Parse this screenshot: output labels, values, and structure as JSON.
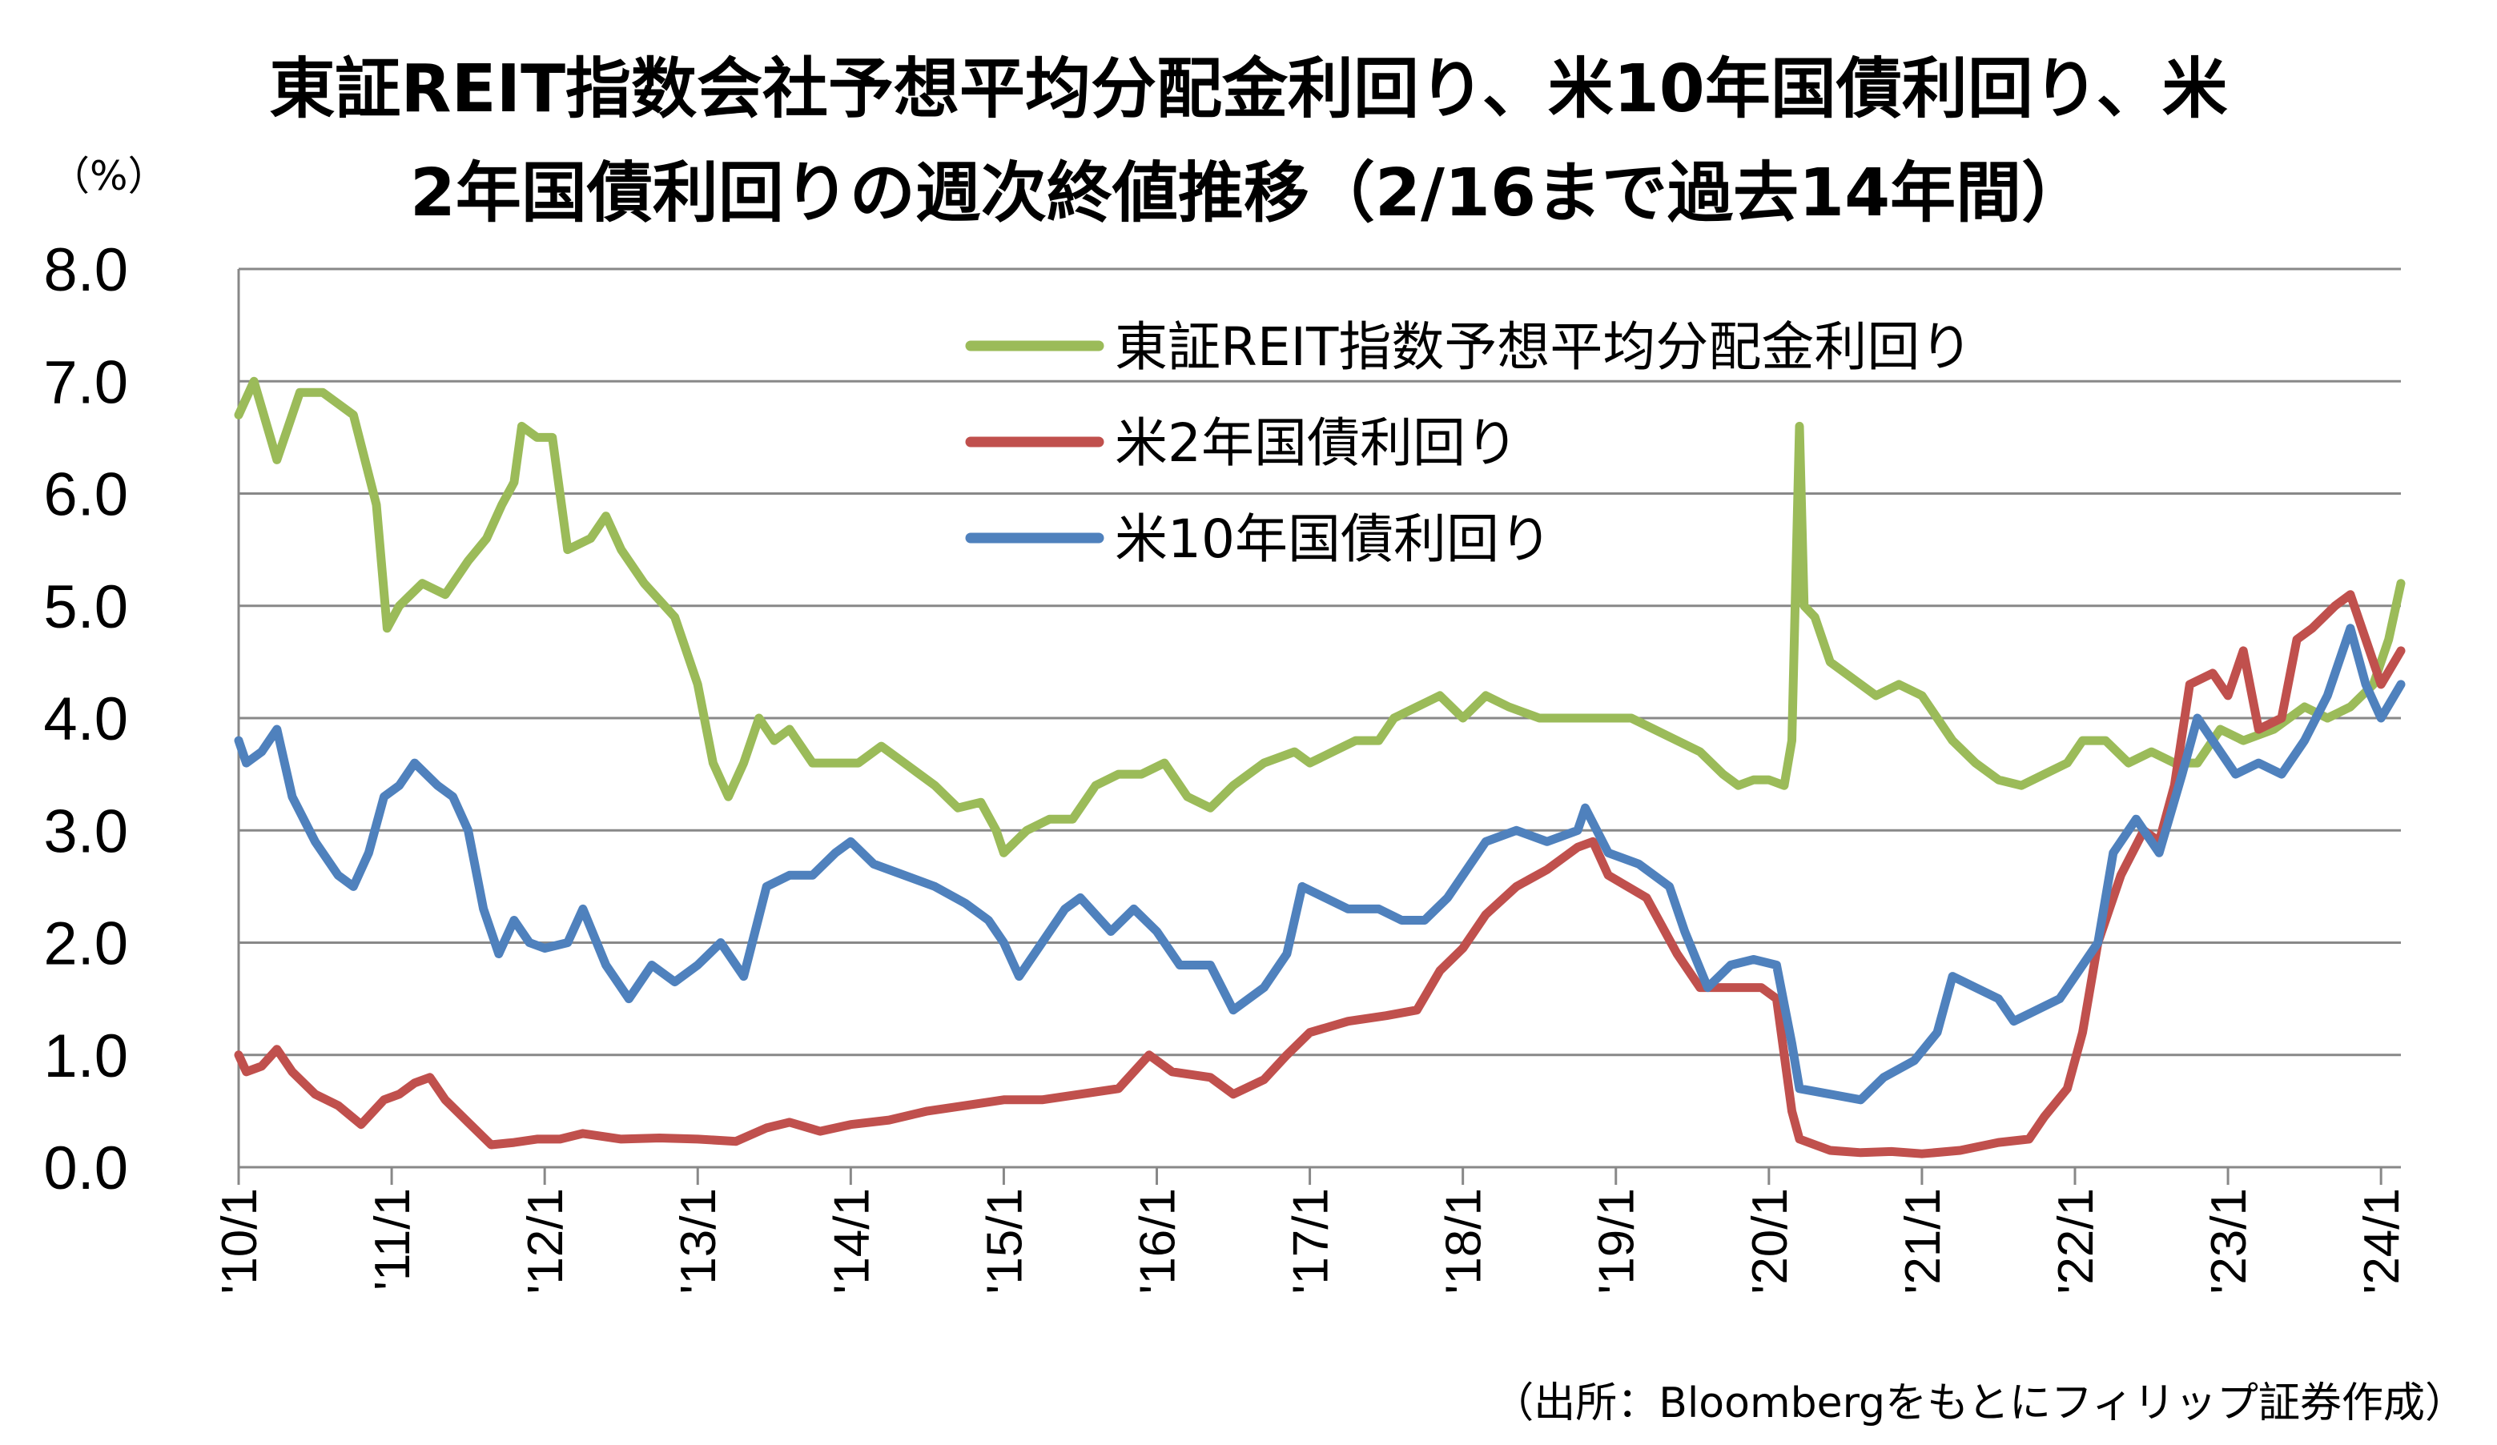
{
  "chart_data": {
    "type": "line",
    "title_line1": "東証REIT指数会社予想平均分配金利回り、米10年国債利回り、米",
    "title_line2": "2年国債利回りの週次終値推移（2/16まで過去14年間）",
    "ylabel": "（%）",
    "source": "（出所：Bloombergをもとにフィリップ証券作成）",
    "ylim": [
      0,
      8
    ],
    "yticks": [
      "0.0",
      "1.0",
      "2.0",
      "3.0",
      "4.0",
      "5.0",
      "6.0",
      "7.0",
      "8.0"
    ],
    "xticks": [
      "'10/1",
      "'11/1",
      "'12/1",
      "'13/1",
      "'14/1",
      "'15/1",
      "'16/1",
      "'17/1",
      "'18/1",
      "'19/1",
      "'20/1",
      "'21/1",
      "'22/1",
      "'23/1",
      "'24/1"
    ],
    "grid": true,
    "legend_position": "top-center",
    "series": [
      {
        "name": "東証REIT指数予想平均分配金利回り",
        "color": "#9BBB59",
        "points": [
          [
            2010.0,
            6.7
          ],
          [
            2010.1,
            7.0
          ],
          [
            2010.25,
            6.3
          ],
          [
            2010.4,
            6.9
          ],
          [
            2010.55,
            6.9
          ],
          [
            2010.75,
            6.7
          ],
          [
            2010.9,
            5.9
          ],
          [
            2010.97,
            4.8
          ],
          [
            2011.05,
            5.0
          ],
          [
            2011.2,
            5.2
          ],
          [
            2011.35,
            5.1
          ],
          [
            2011.5,
            5.4
          ],
          [
            2011.62,
            5.6
          ],
          [
            2011.72,
            5.9
          ],
          [
            2011.8,
            6.1
          ],
          [
            2011.85,
            6.6
          ],
          [
            2011.95,
            6.5
          ],
          [
            2012.05,
            6.5
          ],
          [
            2012.15,
            5.5
          ],
          [
            2012.3,
            5.6
          ],
          [
            2012.4,
            5.8
          ],
          [
            2012.5,
            5.5
          ],
          [
            2012.65,
            5.2
          ],
          [
            2012.85,
            4.9
          ],
          [
            2013.0,
            4.3
          ],
          [
            2013.1,
            3.6
          ],
          [
            2013.2,
            3.3
          ],
          [
            2013.3,
            3.6
          ],
          [
            2013.4,
            4.0
          ],
          [
            2013.5,
            3.8
          ],
          [
            2013.6,
            3.9
          ],
          [
            2013.75,
            3.6
          ],
          [
            2013.9,
            3.6
          ],
          [
            2014.05,
            3.6
          ],
          [
            2014.2,
            3.75
          ],
          [
            2014.35,
            3.6
          ],
          [
            2014.55,
            3.4
          ],
          [
            2014.7,
            3.2
          ],
          [
            2014.85,
            3.25
          ],
          [
            2014.95,
            3.0
          ],
          [
            2015.0,
            2.8
          ],
          [
            2015.15,
            3.0
          ],
          [
            2015.3,
            3.1
          ],
          [
            2015.45,
            3.1
          ],
          [
            2015.6,
            3.4
          ],
          [
            2015.75,
            3.5
          ],
          [
            2015.9,
            3.5
          ],
          [
            2016.05,
            3.6
          ],
          [
            2016.2,
            3.3
          ],
          [
            2016.35,
            3.2
          ],
          [
            2016.5,
            3.4
          ],
          [
            2016.7,
            3.6
          ],
          [
            2016.9,
            3.7
          ],
          [
            2017.0,
            3.6
          ],
          [
            2017.15,
            3.7
          ],
          [
            2017.3,
            3.8
          ],
          [
            2017.45,
            3.8
          ],
          [
            2017.55,
            4.0
          ],
          [
            2017.7,
            4.1
          ],
          [
            2017.85,
            4.2
          ],
          [
            2018.0,
            4.0
          ],
          [
            2018.15,
            4.2
          ],
          [
            2018.3,
            4.1
          ],
          [
            2018.5,
            4.0
          ],
          [
            2018.7,
            4.0
          ],
          [
            2018.9,
            4.0
          ],
          [
            2019.1,
            4.0
          ],
          [
            2019.25,
            3.9
          ],
          [
            2019.4,
            3.8
          ],
          [
            2019.55,
            3.7
          ],
          [
            2019.7,
            3.5
          ],
          [
            2019.8,
            3.4
          ],
          [
            2019.9,
            3.45
          ],
          [
            2020.0,
            3.45
          ],
          [
            2020.1,
            3.4
          ],
          [
            2020.15,
            3.8
          ],
          [
            2020.2,
            6.6
          ],
          [
            2020.23,
            5.0
          ],
          [
            2020.3,
            4.9
          ],
          [
            2020.4,
            4.5
          ],
          [
            2020.5,
            4.4
          ],
          [
            2020.6,
            4.3
          ],
          [
            2020.7,
            4.2
          ],
          [
            2020.85,
            4.3
          ],
          [
            2021.0,
            4.2
          ],
          [
            2021.1,
            4.0
          ],
          [
            2021.2,
            3.8
          ],
          [
            2021.35,
            3.6
          ],
          [
            2021.5,
            3.45
          ],
          [
            2021.65,
            3.4
          ],
          [
            2021.8,
            3.5
          ],
          [
            2021.95,
            3.6
          ],
          [
            2022.05,
            3.8
          ],
          [
            2022.2,
            3.8
          ],
          [
            2022.35,
            3.6
          ],
          [
            2022.5,
            3.7
          ],
          [
            2022.65,
            3.6
          ],
          [
            2022.8,
            3.6
          ],
          [
            2022.95,
            3.9
          ],
          [
            2023.1,
            3.8
          ],
          [
            2023.3,
            3.9
          ],
          [
            2023.5,
            4.1
          ],
          [
            2023.65,
            4.0
          ],
          [
            2023.8,
            4.1
          ],
          [
            2023.95,
            4.3
          ],
          [
            2024.05,
            4.7
          ],
          [
            2024.13,
            5.2
          ]
        ]
      },
      {
        "name": "米2年国債利回り",
        "color": "#C0504D",
        "points": [
          [
            2010.0,
            1.0
          ],
          [
            2010.05,
            0.85
          ],
          [
            2010.15,
            0.9
          ],
          [
            2010.25,
            1.05
          ],
          [
            2010.35,
            0.85
          ],
          [
            2010.5,
            0.65
          ],
          [
            2010.65,
            0.55
          ],
          [
            2010.8,
            0.38
          ],
          [
            2010.95,
            0.6
          ],
          [
            2011.05,
            0.65
          ],
          [
            2011.15,
            0.75
          ],
          [
            2011.25,
            0.8
          ],
          [
            2011.35,
            0.6
          ],
          [
            2011.5,
            0.4
          ],
          [
            2011.65,
            0.2
          ],
          [
            2011.8,
            0.22
          ],
          [
            2011.95,
            0.25
          ],
          [
            2012.1,
            0.25
          ],
          [
            2012.25,
            0.3
          ],
          [
            2012.5,
            0.25
          ],
          [
            2012.75,
            0.26
          ],
          [
            2013.0,
            0.25
          ],
          [
            2013.25,
            0.23
          ],
          [
            2013.45,
            0.35
          ],
          [
            2013.6,
            0.4
          ],
          [
            2013.8,
            0.32
          ],
          [
            2014.0,
            0.38
          ],
          [
            2014.25,
            0.42
          ],
          [
            2014.5,
            0.5
          ],
          [
            2014.75,
            0.55
          ],
          [
            2015.0,
            0.6
          ],
          [
            2015.25,
            0.6
          ],
          [
            2015.5,
            0.65
          ],
          [
            2015.75,
            0.7
          ],
          [
            2015.95,
            1.0
          ],
          [
            2016.1,
            0.85
          ],
          [
            2016.35,
            0.8
          ],
          [
            2016.5,
            0.65
          ],
          [
            2016.7,
            0.78
          ],
          [
            2016.85,
            1.0
          ],
          [
            2017.0,
            1.2
          ],
          [
            2017.25,
            1.3
          ],
          [
            2017.5,
            1.35
          ],
          [
            2017.7,
            1.4
          ],
          [
            2017.85,
            1.75
          ],
          [
            2018.0,
            1.95
          ],
          [
            2018.15,
            2.25
          ],
          [
            2018.35,
            2.5
          ],
          [
            2018.55,
            2.65
          ],
          [
            2018.75,
            2.85
          ],
          [
            2018.85,
            2.9
          ],
          [
            2018.95,
            2.6
          ],
          [
            2019.2,
            2.4
          ],
          [
            2019.4,
            1.9
          ],
          [
            2019.55,
            1.6
          ],
          [
            2019.7,
            1.6
          ],
          [
            2019.95,
            1.6
          ],
          [
            2020.05,
            1.5
          ],
          [
            2020.15,
            0.5
          ],
          [
            2020.2,
            0.25
          ],
          [
            2020.4,
            0.15
          ],
          [
            2020.6,
            0.13
          ],
          [
            2020.8,
            0.14
          ],
          [
            2021.0,
            0.12
          ],
          [
            2021.25,
            0.15
          ],
          [
            2021.5,
            0.22
          ],
          [
            2021.7,
            0.25
          ],
          [
            2021.8,
            0.45
          ],
          [
            2021.95,
            0.7
          ],
          [
            2022.05,
            1.2
          ],
          [
            2022.15,
            2.0
          ],
          [
            2022.3,
            2.6
          ],
          [
            2022.45,
            3.0
          ],
          [
            2022.55,
            2.9
          ],
          [
            2022.65,
            3.4
          ],
          [
            2022.75,
            4.3
          ],
          [
            2022.9,
            4.4
          ],
          [
            2023.0,
            4.2
          ],
          [
            2023.1,
            4.6
          ],
          [
            2023.2,
            3.9
          ],
          [
            2023.35,
            4.0
          ],
          [
            2023.45,
            4.7
          ],
          [
            2023.55,
            4.8
          ],
          [
            2023.7,
            5.0
          ],
          [
            2023.8,
            5.1
          ],
          [
            2023.9,
            4.7
          ],
          [
            2024.0,
            4.3
          ],
          [
            2024.13,
            4.6
          ]
        ]
      },
      {
        "name": "米10年国債利回り",
        "color": "#4F81BD",
        "points": [
          [
            2010.0,
            3.8
          ],
          [
            2010.05,
            3.6
          ],
          [
            2010.15,
            3.7
          ],
          [
            2010.25,
            3.9
          ],
          [
            2010.35,
            3.3
          ],
          [
            2010.5,
            2.9
          ],
          [
            2010.65,
            2.6
          ],
          [
            2010.75,
            2.5
          ],
          [
            2010.85,
            2.8
          ],
          [
            2010.95,
            3.3
          ],
          [
            2011.05,
            3.4
          ],
          [
            2011.15,
            3.6
          ],
          [
            2011.3,
            3.4
          ],
          [
            2011.4,
            3.3
          ],
          [
            2011.5,
            3.0
          ],
          [
            2011.6,
            2.3
          ],
          [
            2011.7,
            1.9
          ],
          [
            2011.8,
            2.2
          ],
          [
            2011.9,
            2.0
          ],
          [
            2012.0,
            1.95
          ],
          [
            2012.15,
            2.0
          ],
          [
            2012.25,
            2.3
          ],
          [
            2012.4,
            1.8
          ],
          [
            2012.55,
            1.5
          ],
          [
            2012.7,
            1.8
          ],
          [
            2012.85,
            1.65
          ],
          [
            2013.0,
            1.8
          ],
          [
            2013.15,
            2.0
          ],
          [
            2013.3,
            1.7
          ],
          [
            2013.45,
            2.5
          ],
          [
            2013.6,
            2.6
          ],
          [
            2013.75,
            2.6
          ],
          [
            2013.9,
            2.8
          ],
          [
            2014.0,
            2.9
          ],
          [
            2014.15,
            2.7
          ],
          [
            2014.35,
            2.6
          ],
          [
            2014.55,
            2.5
          ],
          [
            2014.75,
            2.35
          ],
          [
            2014.9,
            2.2
          ],
          [
            2015.0,
            2.0
          ],
          [
            2015.1,
            1.7
          ],
          [
            2015.25,
            2.0
          ],
          [
            2015.4,
            2.3
          ],
          [
            2015.5,
            2.4
          ],
          [
            2015.7,
            2.1
          ],
          [
            2015.85,
            2.3
          ],
          [
            2016.0,
            2.1
          ],
          [
            2016.15,
            1.8
          ],
          [
            2016.35,
            1.8
          ],
          [
            2016.5,
            1.4
          ],
          [
            2016.7,
            1.6
          ],
          [
            2016.85,
            1.9
          ],
          [
            2016.95,
            2.5
          ],
          [
            2017.1,
            2.4
          ],
          [
            2017.25,
            2.3
          ],
          [
            2017.45,
            2.3
          ],
          [
            2017.6,
            2.2
          ],
          [
            2017.75,
            2.2
          ],
          [
            2017.9,
            2.4
          ],
          [
            2018.05,
            2.7
          ],
          [
            2018.15,
            2.9
          ],
          [
            2018.35,
            3.0
          ],
          [
            2018.55,
            2.9
          ],
          [
            2018.75,
            3.0
          ],
          [
            2018.8,
            3.2
          ],
          [
            2018.95,
            2.8
          ],
          [
            2019.15,
            2.7
          ],
          [
            2019.35,
            2.5
          ],
          [
            2019.45,
            2.1
          ],
          [
            2019.6,
            1.6
          ],
          [
            2019.75,
            1.8
          ],
          [
            2019.9,
            1.85
          ],
          [
            2020.05,
            1.8
          ],
          [
            2020.15,
            1.1
          ],
          [
            2020.2,
            0.7
          ],
          [
            2020.4,
            0.65
          ],
          [
            2020.6,
            0.6
          ],
          [
            2020.75,
            0.8
          ],
          [
            2020.95,
            0.95
          ],
          [
            2021.1,
            1.2
          ],
          [
            2021.2,
            1.7
          ],
          [
            2021.35,
            1.6
          ],
          [
            2021.5,
            1.5
          ],
          [
            2021.6,
            1.3
          ],
          [
            2021.75,
            1.4
          ],
          [
            2021.9,
            1.5
          ],
          [
            2022.0,
            1.7
          ],
          [
            2022.15,
            2.0
          ],
          [
            2022.25,
            2.8
          ],
          [
            2022.4,
            3.1
          ],
          [
            2022.55,
            2.8
          ],
          [
            2022.7,
            3.5
          ],
          [
            2022.8,
            4.0
          ],
          [
            2022.95,
            3.7
          ],
          [
            2023.05,
            3.5
          ],
          [
            2023.2,
            3.6
          ],
          [
            2023.35,
            3.5
          ],
          [
            2023.5,
            3.8
          ],
          [
            2023.65,
            4.2
          ],
          [
            2023.8,
            4.8
          ],
          [
            2023.9,
            4.3
          ],
          [
            2024.0,
            4.0
          ],
          [
            2024.13,
            4.3
          ]
        ]
      }
    ]
  }
}
